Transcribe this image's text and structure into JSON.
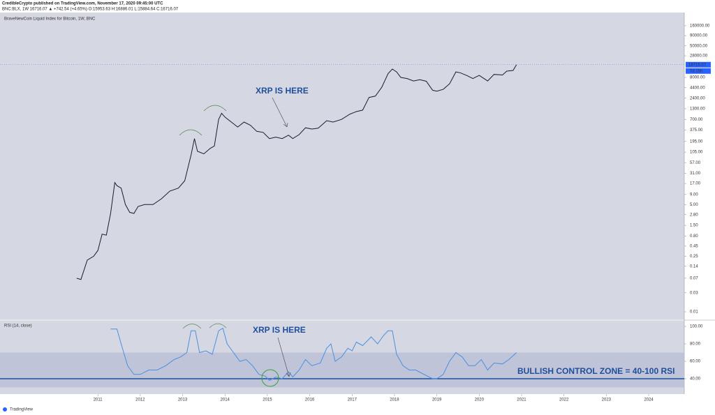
{
  "header": {
    "publisher": "CredibleCrypto published on TradingView.com, November 17, 2020 09:45:00 UTC",
    "symbol": "BNC:BLX, 1W 16716.07 ▲ +742.54 (+4.65%) O:15953.63 H:16886.01 L:15884.64 C:16716.07"
  },
  "footer": "TradingView",
  "chart_data": [
    {
      "type": "line",
      "title": "BraveNewCoin Liquid Index for Bitcoin, 1W, BNC",
      "log_scale": true,
      "color": "#1a1a2e",
      "x": [
        2010.5,
        2010.6,
        2010.75,
        2010.9,
        2011.0,
        2011.1,
        2011.2,
        2011.3,
        2011.4,
        2011.45,
        2011.55,
        2011.65,
        2011.75,
        2011.85,
        2011.95,
        2012.1,
        2012.3,
        2012.5,
        2012.7,
        2012.9,
        2013.05,
        2013.2,
        2013.28,
        2013.35,
        2013.5,
        2013.65,
        2013.75,
        2013.85,
        2013.92,
        2014.0,
        2014.15,
        2014.3,
        2014.45,
        2014.6,
        2014.75,
        2014.9,
        2015.05,
        2015.2,
        2015.35,
        2015.5,
        2015.6,
        2015.75,
        2015.9,
        2016.05,
        2016.2,
        2016.4,
        2016.55,
        2016.75,
        2016.95,
        2017.1,
        2017.25,
        2017.4,
        2017.55,
        2017.7,
        2017.85,
        2017.95,
        2018.05,
        2018.15,
        2018.3,
        2018.45,
        2018.6,
        2018.75,
        2018.9,
        2019.0,
        2019.15,
        2019.3,
        2019.45,
        2019.55,
        2019.7,
        2019.85,
        2020.0,
        2020.2,
        2020.35,
        2020.55,
        2020.65,
        2020.8,
        2020.88
      ],
      "values": [
        0.07,
        0.065,
        0.2,
        0.25,
        0.35,
        0.9,
        0.85,
        3,
        18,
        15,
        13,
        5,
        3.2,
        3,
        4.5,
        5,
        5,
        7,
        11,
        13,
        20,
        90,
        230,
        110,
        95,
        130,
        150,
        700,
        1000,
        800,
        600,
        450,
        600,
        500,
        350,
        330,
        230,
        250,
        230,
        280,
        230,
        290,
        430,
        400,
        420,
        650,
        600,
        700,
        950,
        1100,
        1200,
        2500,
        2700,
        4500,
        10000,
        13000,
        11000,
        8000,
        7500,
        6500,
        7000,
        6400,
        3800,
        3600,
        4000,
        5500,
        11000,
        10500,
        9000,
        7500,
        9000,
        6500,
        9500,
        9200,
        11500,
        12000,
        16716.07
      ],
      "xlim": [
        2008.69,
        2024.84
      ],
      "ylim": [
        0.0064,
        344000
      ],
      "yticks": [
        {
          "value": 160000,
          "label": "160000.00"
        },
        {
          "value": 90000,
          "label": "90000.00"
        },
        {
          "value": 50000,
          "label": "50000.00"
        },
        {
          "value": 28000,
          "label": "28000.00"
        },
        {
          "value": 8000,
          "label": "8000.00"
        },
        {
          "value": 4400,
          "label": "4400.00"
        },
        {
          "value": 2400,
          "label": "2400.00"
        },
        {
          "value": 1300,
          "label": "1300.00"
        },
        {
          "value": 700,
          "label": "700.00"
        },
        {
          "value": 375,
          "label": "375.00"
        },
        {
          "value": 195,
          "label": "195.00"
        },
        {
          "value": 105,
          "label": "105.00"
        },
        {
          "value": 57,
          "label": "57.00"
        },
        {
          "value": 31,
          "label": "31.00"
        },
        {
          "value": 17,
          "label": "17.00"
        },
        {
          "value": 9,
          "label": "9.00"
        },
        {
          "value": 5,
          "label": "5.00"
        },
        {
          "value": 2.8,
          "label": "2.80"
        },
        {
          "value": 1.5,
          "label": "1.50"
        },
        {
          "value": 0.8,
          "label": "0.80"
        },
        0.45,
        0.25,
        0.14,
        0.07,
        0.03,
        0.01
      ],
      "last_price": {
        "value": 16716.07,
        "label": "16716.07"
      },
      "countdown": "7d 15h",
      "annotation": "XRP IS HERE"
    },
    {
      "type": "line",
      "title": "RSI (14, close)",
      "color": "#4a90e2",
      "x": [
        2011.3,
        2011.45,
        2011.55,
        2011.7,
        2011.85,
        2012.0,
        2012.2,
        2012.4,
        2012.6,
        2012.8,
        2012.95,
        2013.1,
        2013.2,
        2013.3,
        2013.4,
        2013.55,
        2013.7,
        2013.85,
        2013.95,
        2014.05,
        2014.2,
        2014.35,
        2014.5,
        2014.65,
        2014.8,
        2014.95,
        2015.05,
        2015.2,
        2015.35,
        2015.5,
        2015.6,
        2015.75,
        2015.9,
        2016.05,
        2016.25,
        2016.4,
        2016.5,
        2016.6,
        2016.75,
        2016.9,
        2017.0,
        2017.1,
        2017.25,
        2017.45,
        2017.6,
        2017.75,
        2017.85,
        2017.95,
        2018.05,
        2018.2,
        2018.35,
        2018.5,
        2018.7,
        2018.9,
        2019.0,
        2019.15,
        2019.3,
        2019.45,
        2019.6,
        2019.75,
        2019.9,
        2020.05,
        2020.2,
        2020.35,
        2020.55,
        2020.7,
        2020.88
      ],
      "values": [
        97,
        97,
        80,
        55,
        45,
        45,
        50,
        50,
        55,
        62,
        65,
        70,
        95,
        95,
        70,
        72,
        68,
        95,
        98,
        80,
        70,
        60,
        62,
        55,
        45,
        43,
        38,
        42,
        40,
        48,
        42,
        50,
        62,
        55,
        58,
        75,
        80,
        60,
        65,
        75,
        72,
        82,
        78,
        88,
        80,
        90,
        95,
        95,
        68,
        55,
        50,
        50,
        45,
        40,
        40,
        45,
        60,
        70,
        65,
        55,
        55,
        62,
        50,
        58,
        57,
        62,
        70
      ],
      "xlim": [
        2008.69,
        2024.84
      ],
      "ylim": [
        22.4,
        106.4
      ],
      "xticks": [
        2011,
        2012,
        2013,
        2014,
        2015,
        2016,
        2017,
        2018,
        2019,
        2020,
        2021,
        2022,
        2023,
        2024
      ],
      "yticks": [
        {
          "value": 100,
          "label": "100.00"
        },
        {
          "value": 80,
          "label": "80.00"
        },
        {
          "value": 60,
          "label": "60.00"
        },
        {
          "value": 40,
          "label": "40.00"
        }
      ],
      "band": [
        30,
        70
      ],
      "level": 40,
      "annotation": "XRP IS HERE",
      "zone_label": "BULLISH CONTROL ZONE = 40-100 RSI"
    }
  ]
}
